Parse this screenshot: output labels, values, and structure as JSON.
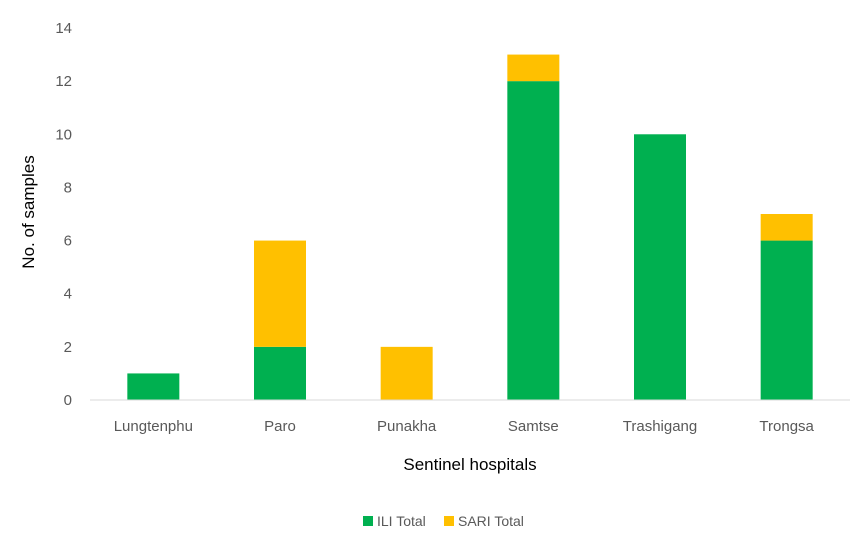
{
  "chart_data": {
    "type": "bar",
    "stacked": true,
    "title": "",
    "xlabel": "Sentinel hospitals",
    "ylabel": "No. of samples",
    "categories": [
      "Lungtenphu",
      "Paro",
      "Punakha",
      "Samtse",
      "Trashigang",
      "Trongsa"
    ],
    "series": [
      {
        "name": "ILI Total",
        "values": [
          1,
          2,
          0,
          12,
          10,
          6
        ],
        "color": "#00b050"
      },
      {
        "name": "SARI Total",
        "values": [
          0,
          4,
          2,
          1,
          0,
          1
        ],
        "color": "#ffc000"
      }
    ],
    "ylim": [
      0,
      14
    ],
    "yticks": [
      0,
      2,
      4,
      6,
      8,
      10,
      12,
      14
    ],
    "grid": false,
    "legend_position": "bottom"
  }
}
